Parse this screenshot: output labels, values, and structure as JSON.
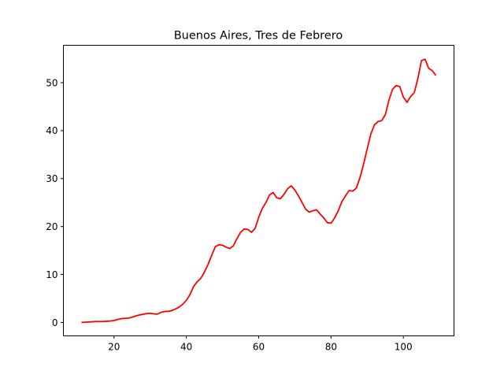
{
  "chart_data": {
    "type": "line",
    "title": "Buenos Aires, Tres de Febrero",
    "xlabel": "",
    "ylabel": "",
    "xlim": [
      6,
      114
    ],
    "ylim": [
      -2.8,
      57.8
    ],
    "xticks": [
      20,
      40,
      60,
      80,
      100
    ],
    "yticks": [
      0,
      10,
      20,
      30,
      40,
      50
    ],
    "grid": false,
    "legend": "none",
    "series": [
      {
        "color": "#ff0000",
        "x": [
          11,
          12,
          13,
          14,
          15,
          16,
          17,
          18,
          19,
          20,
          21,
          22,
          23,
          24,
          25,
          26,
          27,
          28,
          29,
          30,
          31,
          32,
          33,
          34,
          35,
          36,
          37,
          38,
          39,
          40,
          41,
          42,
          43,
          44,
          45,
          46,
          47,
          48,
          49,
          50,
          51,
          52,
          53,
          54,
          55,
          56,
          57,
          58,
          59,
          60,
          61,
          62,
          63,
          64,
          65,
          66,
          67,
          68,
          69,
          70,
          71,
          72,
          73,
          74,
          75,
          76,
          77,
          78,
          79,
          80,
          81,
          82,
          83,
          84,
          85,
          86,
          87,
          88,
          89,
          90,
          91,
          92,
          93,
          94,
          95,
          96,
          97,
          98,
          99,
          100,
          101,
          102,
          103,
          104,
          105,
          106,
          107,
          108,
          109
        ],
        "y": [
          0,
          0.05,
          0.1,
          0.15,
          0.2,
          0.2,
          0.2,
          0.25,
          0.3,
          0.4,
          0.6,
          0.8,
          0.85,
          0.9,
          1.1,
          1.35,
          1.55,
          1.7,
          1.85,
          1.9,
          1.8,
          1.75,
          2.1,
          2.3,
          2.3,
          2.5,
          2.8,
          3.2,
          3.8,
          4.6,
          5.8,
          7.5,
          8.5,
          9.2,
          10.5,
          12.1,
          14,
          15.8,
          16.2,
          16.1,
          15.7,
          15.4,
          16,
          17.5,
          18.8,
          19.5,
          19.4,
          18.8,
          19.6,
          21.9,
          23.8,
          25,
          26.6,
          27.1,
          26,
          25.8,
          26.7,
          27.9,
          28.5,
          27.6,
          26.4,
          25,
          23.6,
          23,
          23.3,
          23.5,
          22.6,
          21.8,
          20.8,
          20.7,
          21.8,
          23.3,
          25.2,
          26.4,
          27.5,
          27.4,
          28,
          30.2,
          33,
          36.2,
          39.3,
          41.2,
          41.9,
          42.1,
          43.3,
          46.3,
          48.6,
          49.4,
          49.2,
          47,
          45.9,
          47.1,
          47.9,
          50.8,
          54.6,
          54.9,
          53,
          52.5,
          51.5
        ]
      }
    ]
  }
}
